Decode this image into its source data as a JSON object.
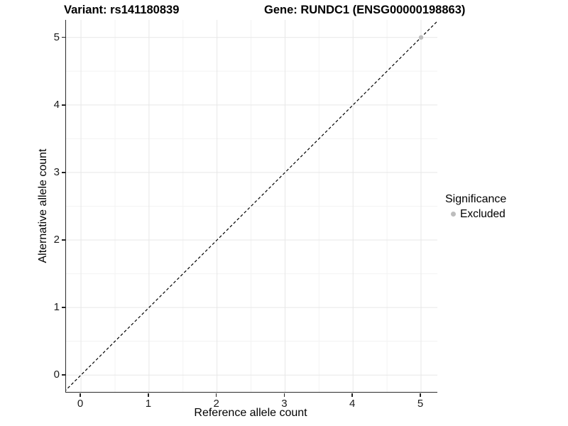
{
  "chart_data": {
    "type": "scatter",
    "titles": {
      "variant": "Variant: rs141180839",
      "gene": "Gene: RUNDC1 (ENSG00000198863)"
    },
    "xlabel": "Reference allele count",
    "ylabel": "Alternative allele count",
    "x_ticks": [
      0,
      1,
      2,
      3,
      4,
      5
    ],
    "y_ticks": [
      0,
      1,
      2,
      3,
      4,
      5
    ],
    "xlim": [
      -0.22,
      5.24
    ],
    "ylim": [
      -0.25,
      5.26
    ],
    "grid": {
      "show": true,
      "major_color": "#e7e7e7",
      "minor_color": "#f3f3f3"
    },
    "identity_line": {
      "show": true,
      "style": "dashed",
      "color": "#000000",
      "slope": 1,
      "intercept": 0
    },
    "series": [
      {
        "name": "Excluded",
        "color": "#bdbdbd",
        "points": [
          {
            "x": 5,
            "y": 5
          }
        ]
      }
    ],
    "legend": {
      "title": "Significance",
      "position": "right",
      "entries": [
        {
          "label": "Excluded",
          "color": "#bdbdbd",
          "marker": "circle"
        }
      ]
    }
  }
}
